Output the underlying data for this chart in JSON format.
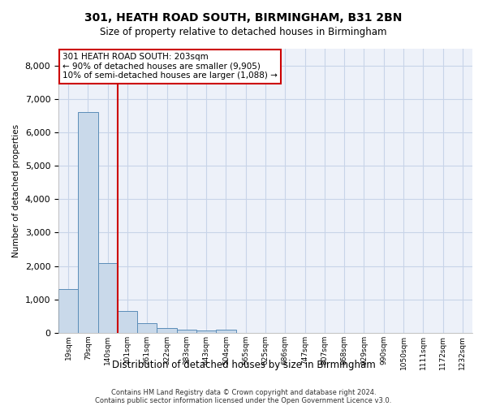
{
  "title": "301, HEATH ROAD SOUTH, BIRMINGHAM, B31 2BN",
  "subtitle": "Size of property relative to detached houses in Birmingham",
  "xlabel": "Distribution of detached houses by size in Birmingham",
  "ylabel": "Number of detached properties",
  "bar_color": "#c9d9ea",
  "bar_edge_color": "#5b8db8",
  "categories": [
    "19sqm",
    "79sqm",
    "140sqm",
    "201sqm",
    "261sqm",
    "322sqm",
    "383sqm",
    "443sqm",
    "504sqm",
    "565sqm",
    "625sqm",
    "686sqm",
    "747sqm",
    "807sqm",
    "868sqm",
    "929sqm",
    "990sqm",
    "1050sqm",
    "1111sqm",
    "1172sqm",
    "1232sqm"
  ],
  "values": [
    1300,
    6600,
    2100,
    650,
    290,
    140,
    90,
    70,
    100,
    0,
    0,
    0,
    0,
    0,
    0,
    0,
    0,
    0,
    0,
    0,
    0
  ],
  "vline_x_idx": 3,
  "vline_color": "#cc0000",
  "annotation_line1": "301 HEATH ROAD SOUTH: 203sqm",
  "annotation_line2": "← 90% of detached houses are smaller (9,905)",
  "annotation_line3": "10% of semi-detached houses are larger (1,088) →",
  "ylim": [
    0,
    8500
  ],
  "yticks": [
    0,
    1000,
    2000,
    3000,
    4000,
    5000,
    6000,
    7000,
    8000
  ],
  "grid_color": "#c8d4e8",
  "background_color": "#edf1f9",
  "footer_line1": "Contains HM Land Registry data © Crown copyright and database right 2024.",
  "footer_line2": "Contains public sector information licensed under the Open Government Licence v3.0."
}
